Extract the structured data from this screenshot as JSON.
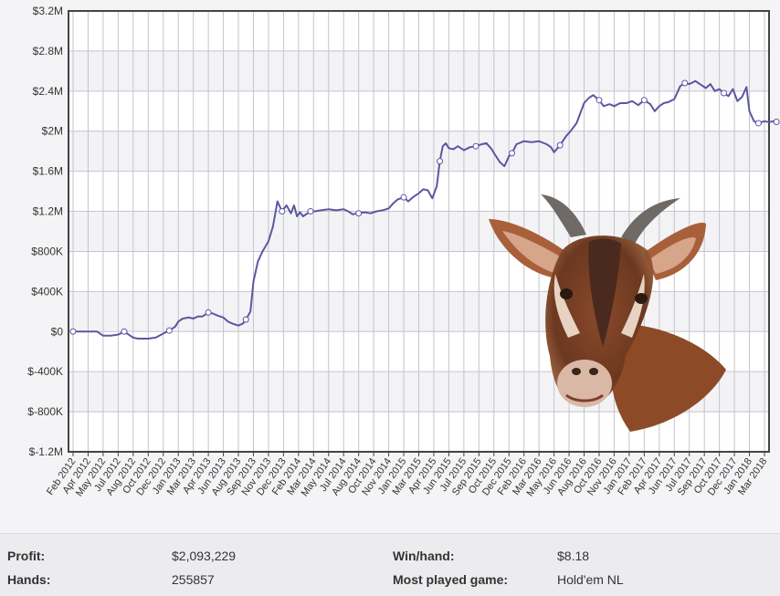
{
  "chart_data": {
    "type": "line",
    "y_ticks": [
      "$3.2M",
      "$2.8M",
      "$2.4M",
      "$2M",
      "$1.6M",
      "$1.2M",
      "$800K",
      "$400K",
      "$0",
      "$-400K",
      "$-800K",
      "$-1.2M"
    ],
    "ylim": [
      -1200000,
      3200000
    ],
    "x_ticks": [
      "Feb 2012",
      "Apr 2012",
      "May 2012",
      "Jul 2012",
      "Aug 2012",
      "Oct 2012",
      "Dec 2012",
      "Jan 2013",
      "Mar 2013",
      "Apr 2013",
      "Jun 2013",
      "Aug 2013",
      "Sep 2013",
      "Nov 2013",
      "Dec 2013",
      "Feb 2014",
      "Mar 2014",
      "May 2014",
      "Jul 2014",
      "Aug 2014",
      "Oct 2014",
      "Nov 2014",
      "Jan 2015",
      "Mar 2015",
      "Apr 2015",
      "Jun 2015",
      "Jul 2015",
      "Sep 2015",
      "Oct 2015",
      "Dec 2015",
      "Feb 2016",
      "Mar 2016",
      "May 2016",
      "Jun 2016",
      "Aug 2016",
      "Oct 2016",
      "Nov 2016",
      "Jan 2017",
      "Feb 2017",
      "Apr 2017",
      "Jun 2017",
      "Jul 2017",
      "Sep 2017",
      "Oct 2017",
      "Dec 2017",
      "Jan 2018",
      "Mar 2018"
    ],
    "grid": true,
    "line_color": "#5b57a2",
    "series": [
      {
        "x": [
          0.0,
          0.5,
          1.0,
          1.5,
          1.6,
          2.0,
          2.5,
          3.0,
          3.4,
          3.8,
          4.0,
          4.3,
          4.6,
          5.0,
          5.5,
          6.0,
          6.4,
          6.8,
          7.0,
          7.3,
          7.7,
          8.0,
          8.3,
          8.6,
          9.0,
          9.3,
          9.6,
          10.0,
          10.3,
          10.6,
          11.0,
          11.3,
          11.5,
          11.8,
          12.0,
          12.3,
          12.6,
          13.0,
          13.3,
          13.6,
          13.9,
          14.2,
          14.5,
          14.7,
          14.9,
          15.1,
          15.3,
          15.5,
          15.8,
          16.1,
          16.5,
          17.0,
          17.5,
          18.0,
          18.3,
          18.6,
          19.0,
          19.4,
          19.8,
          20.2,
          20.6,
          21.0,
          21.3,
          21.6,
          22.0,
          22.3,
          22.6,
          23.0,
          23.3,
          23.6,
          23.9,
          24.2,
          24.4,
          24.6,
          24.8,
          25.0,
          25.3,
          25.6,
          26.0,
          26.4,
          26.8,
          27.2,
          27.5,
          27.8,
          28.1,
          28.4,
          28.7,
          29.0,
          29.2,
          29.5,
          30.0,
          30.5,
          31.0,
          31.5,
          31.8,
          32.0,
          32.4,
          32.8,
          33.1,
          33.5,
          33.8,
          34.0,
          34.3,
          34.6,
          35.0,
          35.3,
          35.7,
          36.0,
          36.4,
          36.8,
          37.2,
          37.6,
          38.0,
          38.4,
          38.7,
          39.0,
          39.3,
          39.6,
          40.0,
          40.4,
          40.7,
          41.0,
          41.4,
          41.8,
          42.1,
          42.4,
          42.7,
          43.0,
          43.3,
          43.6,
          43.9,
          44.2,
          44.5,
          44.8,
          45.0,
          45.3,
          45.6,
          46.0,
          46.3,
          46.6,
          46.8
        ],
        "y": [
          0,
          0,
          0,
          0,
          0,
          -40000,
          -40000,
          -30000,
          0,
          -40000,
          -60000,
          -70000,
          -70000,
          -70000,
          -60000,
          -20000,
          10000,
          50000,
          100000,
          130000,
          140000,
          130000,
          150000,
          150000,
          190000,
          180000,
          160000,
          140000,
          100000,
          80000,
          60000,
          80000,
          120000,
          200000,
          500000,
          700000,
          800000,
          900000,
          1050000,
          1300000,
          1200000,
          1260000,
          1180000,
          1260000,
          1150000,
          1190000,
          1150000,
          1170000,
          1200000,
          1200000,
          1210000,
          1220000,
          1210000,
          1220000,
          1200000,
          1170000,
          1180000,
          1190000,
          1180000,
          1200000,
          1210000,
          1230000,
          1280000,
          1320000,
          1340000,
          1300000,
          1340000,
          1380000,
          1420000,
          1410000,
          1330000,
          1450000,
          1700000,
          1850000,
          1880000,
          1830000,
          1820000,
          1850000,
          1810000,
          1840000,
          1850000,
          1870000,
          1880000,
          1830000,
          1760000,
          1690000,
          1650000,
          1750000,
          1780000,
          1870000,
          1900000,
          1890000,
          1900000,
          1870000,
          1840000,
          1790000,
          1860000,
          1950000,
          2000000,
          2080000,
          2200000,
          2280000,
          2330000,
          2360000,
          2310000,
          2250000,
          2270000,
          2250000,
          2280000,
          2280000,
          2300000,
          2260000,
          2310000,
          2270000,
          2200000,
          2250000,
          2280000,
          2290000,
          2320000,
          2450000,
          2480000,
          2470000,
          2500000,
          2460000,
          2430000,
          2470000,
          2400000,
          2420000,
          2380000,
          2350000,
          2420000,
          2300000,
          2340000,
          2440000,
          2200000,
          2100000,
          2080000,
          2100000,
          2090000,
          2100000,
          2093229
        ]
      }
    ]
  },
  "stats": {
    "profit_label": "Profit:",
    "profit_value": "$2,093,229",
    "hands_label": "Hands:",
    "hands_value": "255857",
    "winhand_label": "Win/hand:",
    "winhand_value": "$8.18",
    "most_played_label": "Most played game:",
    "most_played_value": "Hold'em NL"
  }
}
